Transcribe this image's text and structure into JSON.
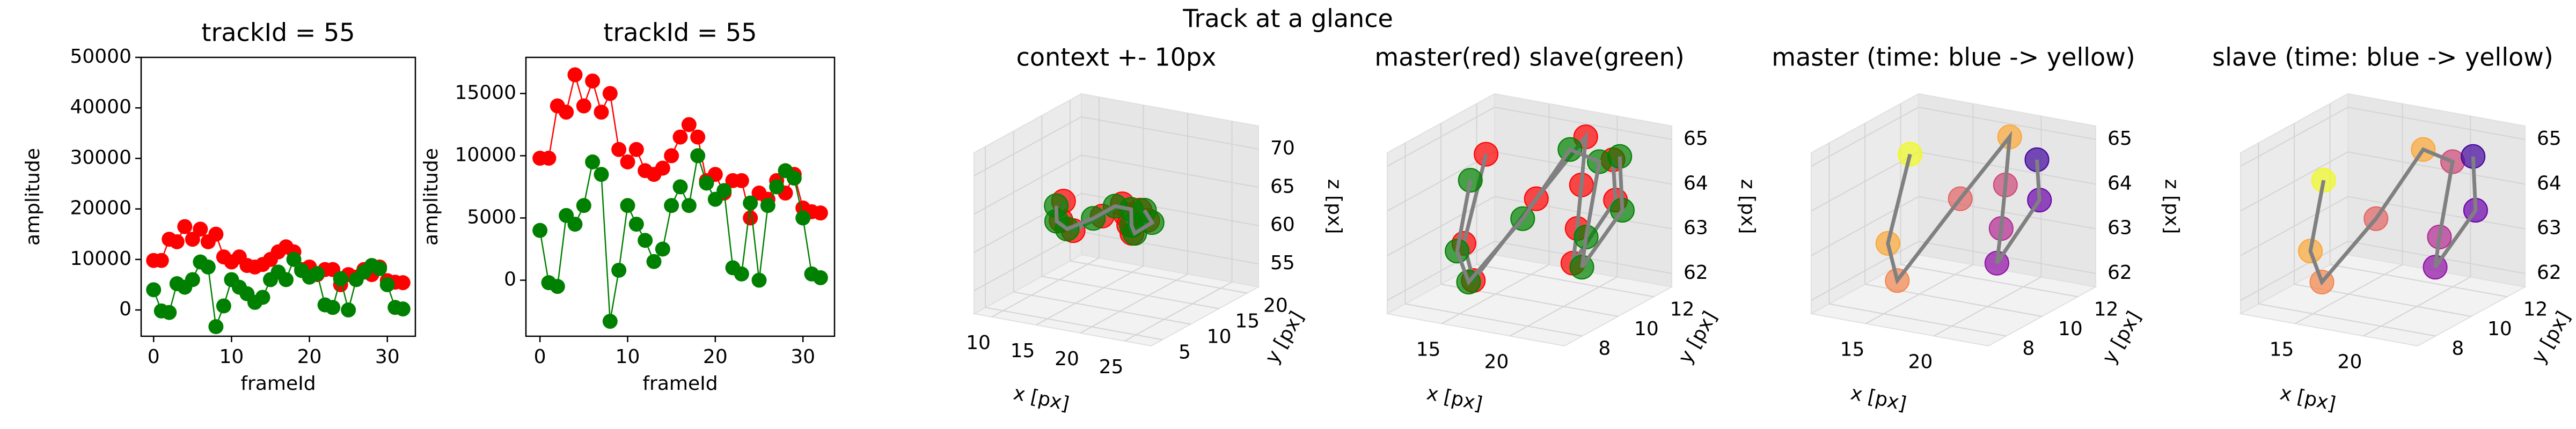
{
  "title": "Track at a glance",
  "chart_data": [
    {
      "type": "line",
      "title": "trackId = 55",
      "xlabel": "frameId",
      "ylabel": "amplitude",
      "x": [
        0,
        1,
        2,
        3,
        4,
        5,
        6,
        7,
        8,
        9,
        10,
        11,
        12,
        13,
        14,
        15,
        16,
        17,
        18,
        19,
        20,
        21,
        22,
        23,
        24,
        25,
        26,
        27,
        28,
        29,
        30,
        31,
        32
      ],
      "xlim": [
        -1.6,
        33.6
      ],
      "xticks": [
        0,
        10,
        20,
        30
      ],
      "ylim": [
        -5200,
        50000
      ],
      "yticks": [
        0,
        10000,
        20000,
        30000,
        40000,
        50000
      ],
      "series": [
        {
          "color": "#ff0000",
          "values": [
            9800,
            9800,
            14000,
            13500,
            16500,
            14000,
            16000,
            13500,
            15000,
            10500,
            9500,
            10500,
            8800,
            8500,
            9000,
            10000,
            11500,
            12500,
            11500,
            8000,
            8500,
            7000,
            8000,
            8000,
            5000,
            7000,
            6500,
            8000,
            7000,
            8500,
            5800,
            5500,
            5400
          ]
        },
        {
          "color": "#008000",
          "values": [
            4000,
            -200,
            -500,
            5200,
            4500,
            6000,
            9500,
            8500,
            -3300,
            800,
            6000,
            4500,
            3200,
            1500,
            2500,
            6000,
            7500,
            6000,
            10000,
            7800,
            6500,
            7200,
            1000,
            500,
            6200,
            0,
            6000,
            7500,
            8800,
            8200,
            5000,
            500,
            200
          ]
        }
      ]
    },
    {
      "type": "line",
      "title": "trackId = 55",
      "xlabel": "frameId",
      "ylabel": "amplitude",
      "x": [
        0,
        1,
        2,
        3,
        4,
        5,
        6,
        7,
        8,
        9,
        10,
        11,
        12,
        13,
        14,
        15,
        16,
        17,
        18,
        19,
        20,
        21,
        22,
        23,
        24,
        25,
        26,
        27,
        28,
        29,
        30,
        31,
        32
      ],
      "xlim": [
        -1.6,
        33.6
      ],
      "xticks": [
        0,
        10,
        20,
        30
      ],
      "ylim": [
        -4500,
        17900
      ],
      "yticks": [
        0,
        5000,
        10000,
        15000
      ],
      "series": [
        {
          "color": "#ff0000",
          "values": [
            9800,
            9800,
            14000,
            13500,
            16500,
            14000,
            16000,
            13500,
            15000,
            10500,
            9500,
            10500,
            8800,
            8500,
            9000,
            10000,
            11500,
            12500,
            11500,
            8000,
            8500,
            7000,
            8000,
            8000,
            5000,
            7000,
            6500,
            8000,
            7000,
            8500,
            5800,
            5500,
            5400
          ]
        },
        {
          "color": "#008000",
          "values": [
            4000,
            -200,
            -500,
            5200,
            4500,
            6000,
            9500,
            8500,
            -3300,
            800,
            6000,
            4500,
            3200,
            1500,
            2500,
            6000,
            7500,
            6000,
            10000,
            7800,
            6500,
            7200,
            1000,
            500,
            6200,
            0,
            6000,
            7500,
            8800,
            8200,
            5000,
            500,
            200
          ]
        }
      ]
    },
    {
      "type": "scatter3d",
      "title": "context +- 10px",
      "xlabel": "x [px]",
      "ylabel": "y [px]",
      "zlabel": "z [px]",
      "xlim": [
        8,
        28
      ],
      "ylim": [
        3,
        22
      ],
      "zlim": [
        52,
        73
      ],
      "xticks": [
        10,
        15,
        20,
        25
      ],
      "yticks": [
        5,
        10,
        15,
        20
      ],
      "zticks": [
        55,
        60,
        65,
        70
      ],
      "line_color": "#808080",
      "series": [
        {
          "color": "#ff0000",
          "x": [
            13,
            14,
            16,
            18,
            19,
            20,
            21,
            22,
            22.5,
            21
          ],
          "y": [
            11,
            9,
            8,
            10,
            12,
            11,
            10,
            9,
            11,
            12
          ],
          "z": [
            64.5,
            63,
            62.5,
            64,
            65,
            64.2,
            63.5,
            63,
            64,
            64.6
          ]
        },
        {
          "color": "#008000",
          "x": [
            12.5,
            13.5,
            15,
            17,
            18.5,
            20,
            21,
            22,
            23,
            21.5
          ],
          "y": [
            10.5,
            9,
            8.5,
            10,
            11.5,
            12,
            10.5,
            9.5,
            11,
            12
          ],
          "z": [
            64,
            62.8,
            62.3,
            63.5,
            64.8,
            64.5,
            63.2,
            62.8,
            63.8,
            64.7
          ]
        }
      ]
    },
    {
      "type": "scatter3d",
      "title": "master(red) slave(green)",
      "xlabel": "x [px]",
      "ylabel": "y [px]",
      "zlabel": "z [px]",
      "xlim": [
        11,
        24
      ],
      "ylim": [
        7,
        13
      ],
      "zlim": [
        61.7,
        65.3
      ],
      "xticks": [
        15,
        20
      ],
      "yticks": [
        8,
        10,
        12
      ],
      "zticks": [
        62,
        63,
        64,
        65
      ],
      "line_color": "#808080",
      "series": [
        {
          "color": "#ff0000",
          "x": [
            13,
            14,
            16,
            18,
            19,
            20,
            21,
            22,
            22.5,
            21
          ],
          "y": [
            11,
            9,
            8,
            10,
            12,
            11,
            10,
            9,
            11,
            12
          ],
          "z": [
            64.5,
            63,
            62.5,
            64,
            65,
            64.2,
            63.5,
            63,
            64,
            64.6
          ]
        },
        {
          "color": "#008000",
          "x": [
            12.5,
            13.5,
            15,
            17,
            18.5,
            20,
            21,
            22,
            23,
            21.5
          ],
          "y": [
            10.5,
            9,
            8.5,
            10,
            11.5,
            12,
            10.5,
            9.5,
            11,
            12
          ],
          "z": [
            64,
            62.8,
            62.3,
            63.5,
            64.8,
            64.5,
            63.2,
            62.8,
            63.8,
            64.7
          ]
        }
      ]
    },
    {
      "type": "scatter3d",
      "title": "master (time: blue -> yellow)",
      "xlabel": "x [px]",
      "ylabel": "y [px]",
      "zlabel": "z [px]",
      "xlim": [
        11,
        24
      ],
      "ylim": [
        7,
        13
      ],
      "zlim": [
        61.7,
        65.3
      ],
      "xticks": [
        15,
        20
      ],
      "yticks": [
        8,
        10,
        12
      ],
      "zticks": [
        62,
        63,
        64,
        65
      ],
      "line_color": "#808080",
      "series": [
        {
          "x": [
            13,
            14,
            16,
            18,
            19,
            20,
            21,
            22,
            22.5,
            21
          ],
          "y": [
            11,
            9,
            8,
            10,
            12,
            11,
            10,
            9,
            11,
            12
          ],
          "z": [
            64.5,
            63,
            62.5,
            64,
            65,
            64.2,
            63.5,
            63,
            64,
            64.6
          ],
          "colors": [
            "#f0f921",
            "#fca636",
            "#f2844b",
            "#e16462",
            "#fca636",
            "#cc4778",
            "#b12a90",
            "#8f0da4",
            "#6a00a8",
            "#41049d"
          ]
        }
      ]
    },
    {
      "type": "scatter3d",
      "title": "slave (time: blue -> yellow)",
      "xlabel": "x [px]",
      "ylabel": "y [px]",
      "zlabel": "z [px]",
      "xlim": [
        11,
        24
      ],
      "ylim": [
        7,
        13
      ],
      "zlim": [
        61.7,
        65.3
      ],
      "xticks": [
        15,
        20
      ],
      "yticks": [
        8,
        10,
        12
      ],
      "zticks": [
        62,
        63,
        64,
        65
      ],
      "line_color": "#808080",
      "series": [
        {
          "x": [
            12.5,
            13.5,
            15,
            17,
            18.5,
            20,
            21,
            22,
            23,
            21.5
          ],
          "y": [
            10.5,
            9,
            8.5,
            10,
            11.5,
            12,
            10.5,
            9.5,
            11,
            12
          ],
          "z": [
            64,
            62.8,
            62.3,
            63.5,
            64.8,
            64.5,
            63.2,
            62.8,
            63.8,
            64.7
          ],
          "colors": [
            "#f0f921",
            "#fca636",
            "#f2844b",
            "#e16462",
            "#fca636",
            "#cc4778",
            "#b12a90",
            "#8f0da4",
            "#6a00a8",
            "#41049d"
          ]
        }
      ]
    }
  ]
}
